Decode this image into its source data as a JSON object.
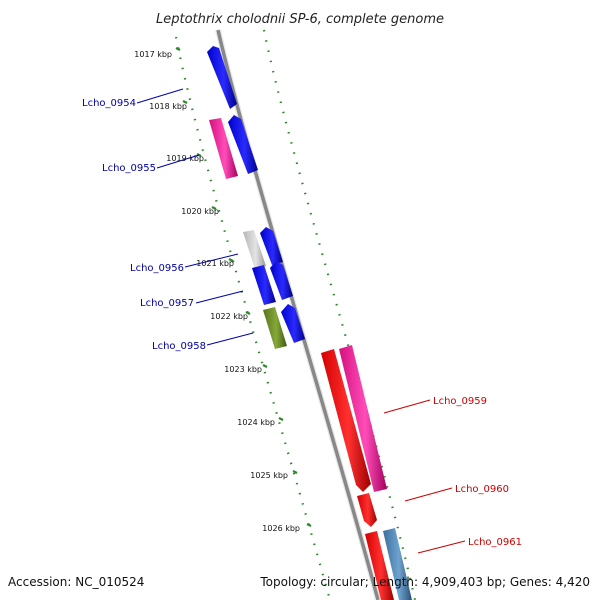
{
  "title": "Leptothrix cholodnii SP-6, complete genome",
  "footer": {
    "accession": "Accession: NC_010524",
    "summary": "Topology: circular; Length: 4,909,403 bp; Genes: 4,420"
  },
  "kbp_labels": [
    "1017 kbp",
    "1018 kbp",
    "1019 kbp",
    "1020 kbp",
    "1021 kbp",
    "1022 kbp",
    "1023 kbp",
    "1024 kbp",
    "1025 kbp",
    "1026 kbp"
  ],
  "genes_left": [
    {
      "label": "Lcho_0954",
      "color": "#0000aa"
    },
    {
      "label": "Lcho_0955",
      "color": "#0000aa"
    },
    {
      "label": "Lcho_0956",
      "color": "#0000aa"
    },
    {
      "label": "Lcho_0957",
      "color": "#0000aa"
    },
    {
      "label": "Lcho_0958",
      "color": "#0000aa"
    }
  ],
  "genes_right": [
    {
      "label": "Lcho_0959",
      "color": "#cc0000"
    },
    {
      "label": "Lcho_0960",
      "color": "#cc0000"
    },
    {
      "label": "Lcho_0961",
      "color": "#cc0000"
    }
  ],
  "colors": {
    "backbone": "#888888",
    "tick_green": "#2a8a2a",
    "gene_blue": "#0000ee",
    "gene_magenta": "#ee1f9a",
    "gene_grey": "#c8c8c8",
    "gene_olive": "#6b8e23",
    "gene_red": "#ee0000",
    "gene_steelblue": "#4682b4"
  }
}
